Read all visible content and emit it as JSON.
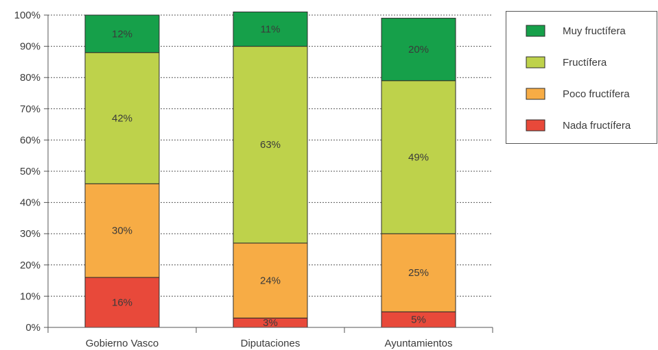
{
  "chart_data": {
    "type": "bar",
    "stacked": true,
    "categories": [
      "Gobierno Vasco",
      "Diputaciones",
      "Ayuntamientos"
    ],
    "series": [
      {
        "name": "Nada fructífera",
        "color": "#e8493a",
        "values": [
          16,
          3,
          5
        ],
        "labels": [
          "16%",
          "3%",
          "5%"
        ]
      },
      {
        "name": "Poco fructífera",
        "color": "#f7ac45",
        "values": [
          30,
          24,
          25
        ],
        "labels": [
          "30%",
          "24%",
          "25%"
        ]
      },
      {
        "name": "Fructífera",
        "color": "#bed24b",
        "values": [
          42,
          63,
          49
        ],
        "labels": [
          "42%",
          "63%",
          "49%"
        ]
      },
      {
        "name": "Muy fructífera",
        "color": "#16a04a",
        "values": [
          12,
          11,
          20
        ],
        "labels": [
          "12%",
          "11%",
          "20%"
        ]
      }
    ],
    "legend_order": [
      "Muy fructífera",
      "Fructífera",
      "Poco fructífera",
      "Nada fructífera"
    ],
    "y_ticks": [
      "0%",
      "10%",
      "20%",
      "30%",
      "40%",
      "50%",
      "60%",
      "70%",
      "80%",
      "90%",
      "100%"
    ],
    "ylim": [
      0,
      100
    ],
    "grid": true,
    "legend_position": "top-right",
    "title": "",
    "xlabel": "",
    "ylabel": ""
  }
}
